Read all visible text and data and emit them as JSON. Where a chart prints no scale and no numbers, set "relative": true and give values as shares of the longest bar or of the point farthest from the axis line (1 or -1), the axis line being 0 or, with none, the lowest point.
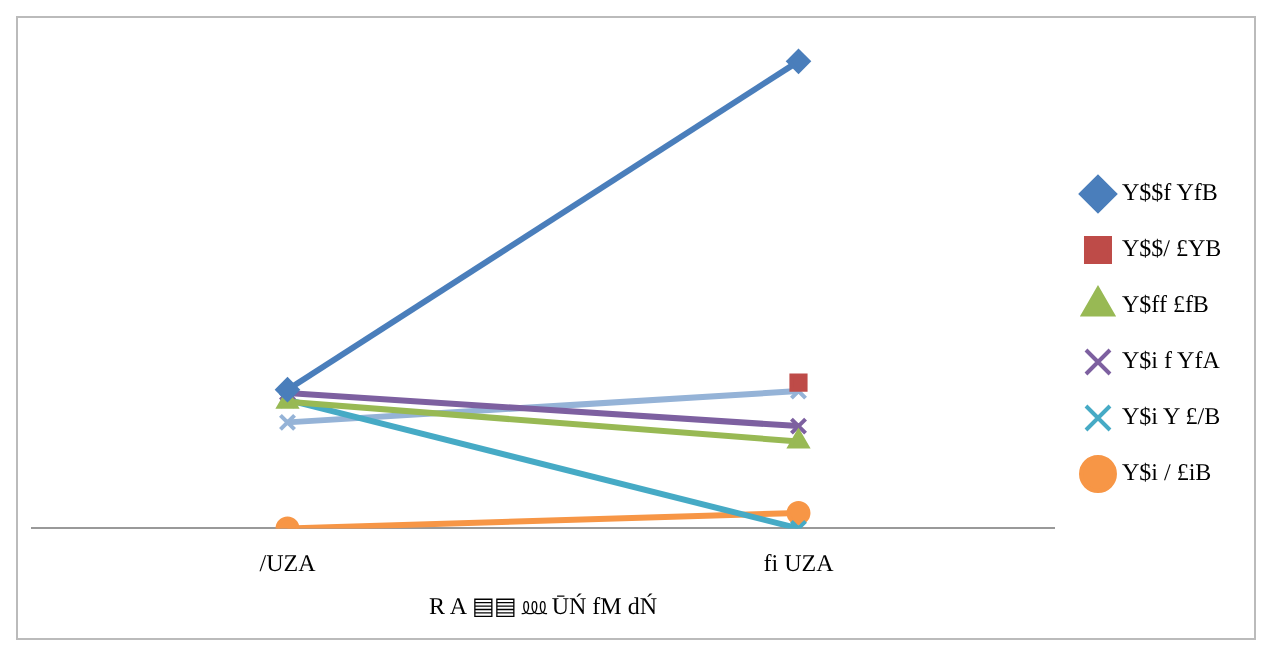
{
  "chart_data": {
    "type": "line",
    "relative": true,
    "xlabel": "R A ▤▤ ⅏ ŪŃ fM dŃ",
    "categories": [
      "/UZA",
      "fi UZA"
    ],
    "legend": "right",
    "line_style": "solid",
    "series": [
      {
        "name": "Y$$f YfB",
        "color": "#4a7ebb",
        "marker": "diamond",
        "values": [
          0.297,
          1
        ]
      },
      {
        "name": "Y$$/ £YB",
        "color": "#be4b48",
        "marker": "square",
        "values": [
          null,
          0.312
        ]
      },
      {
        "name": "Y$ff £fB",
        "color": "#98b954",
        "marker": "triangle",
        "values": [
          0.271,
          0.186
        ]
      },
      {
        "name": "Y$i f YfA",
        "color": "#7d60a0",
        "marker": "cross",
        "values": [
          0.29,
          0.219
        ]
      },
      {
        "name": "Y$i Y £/B",
        "color": "#46aac5",
        "marker": "cross",
        "values": [
          0.275,
          0
        ]
      },
      {
        "name": "Y$i / £iB",
        "color": "#f79646",
        "marker": "circle",
        "values": [
          0,
          0.033
        ]
      },
      {
        "color": "#95b3d7",
        "marker": "cross",
        "values": [
          0.227,
          0.294
        ]
      }
    ]
  }
}
